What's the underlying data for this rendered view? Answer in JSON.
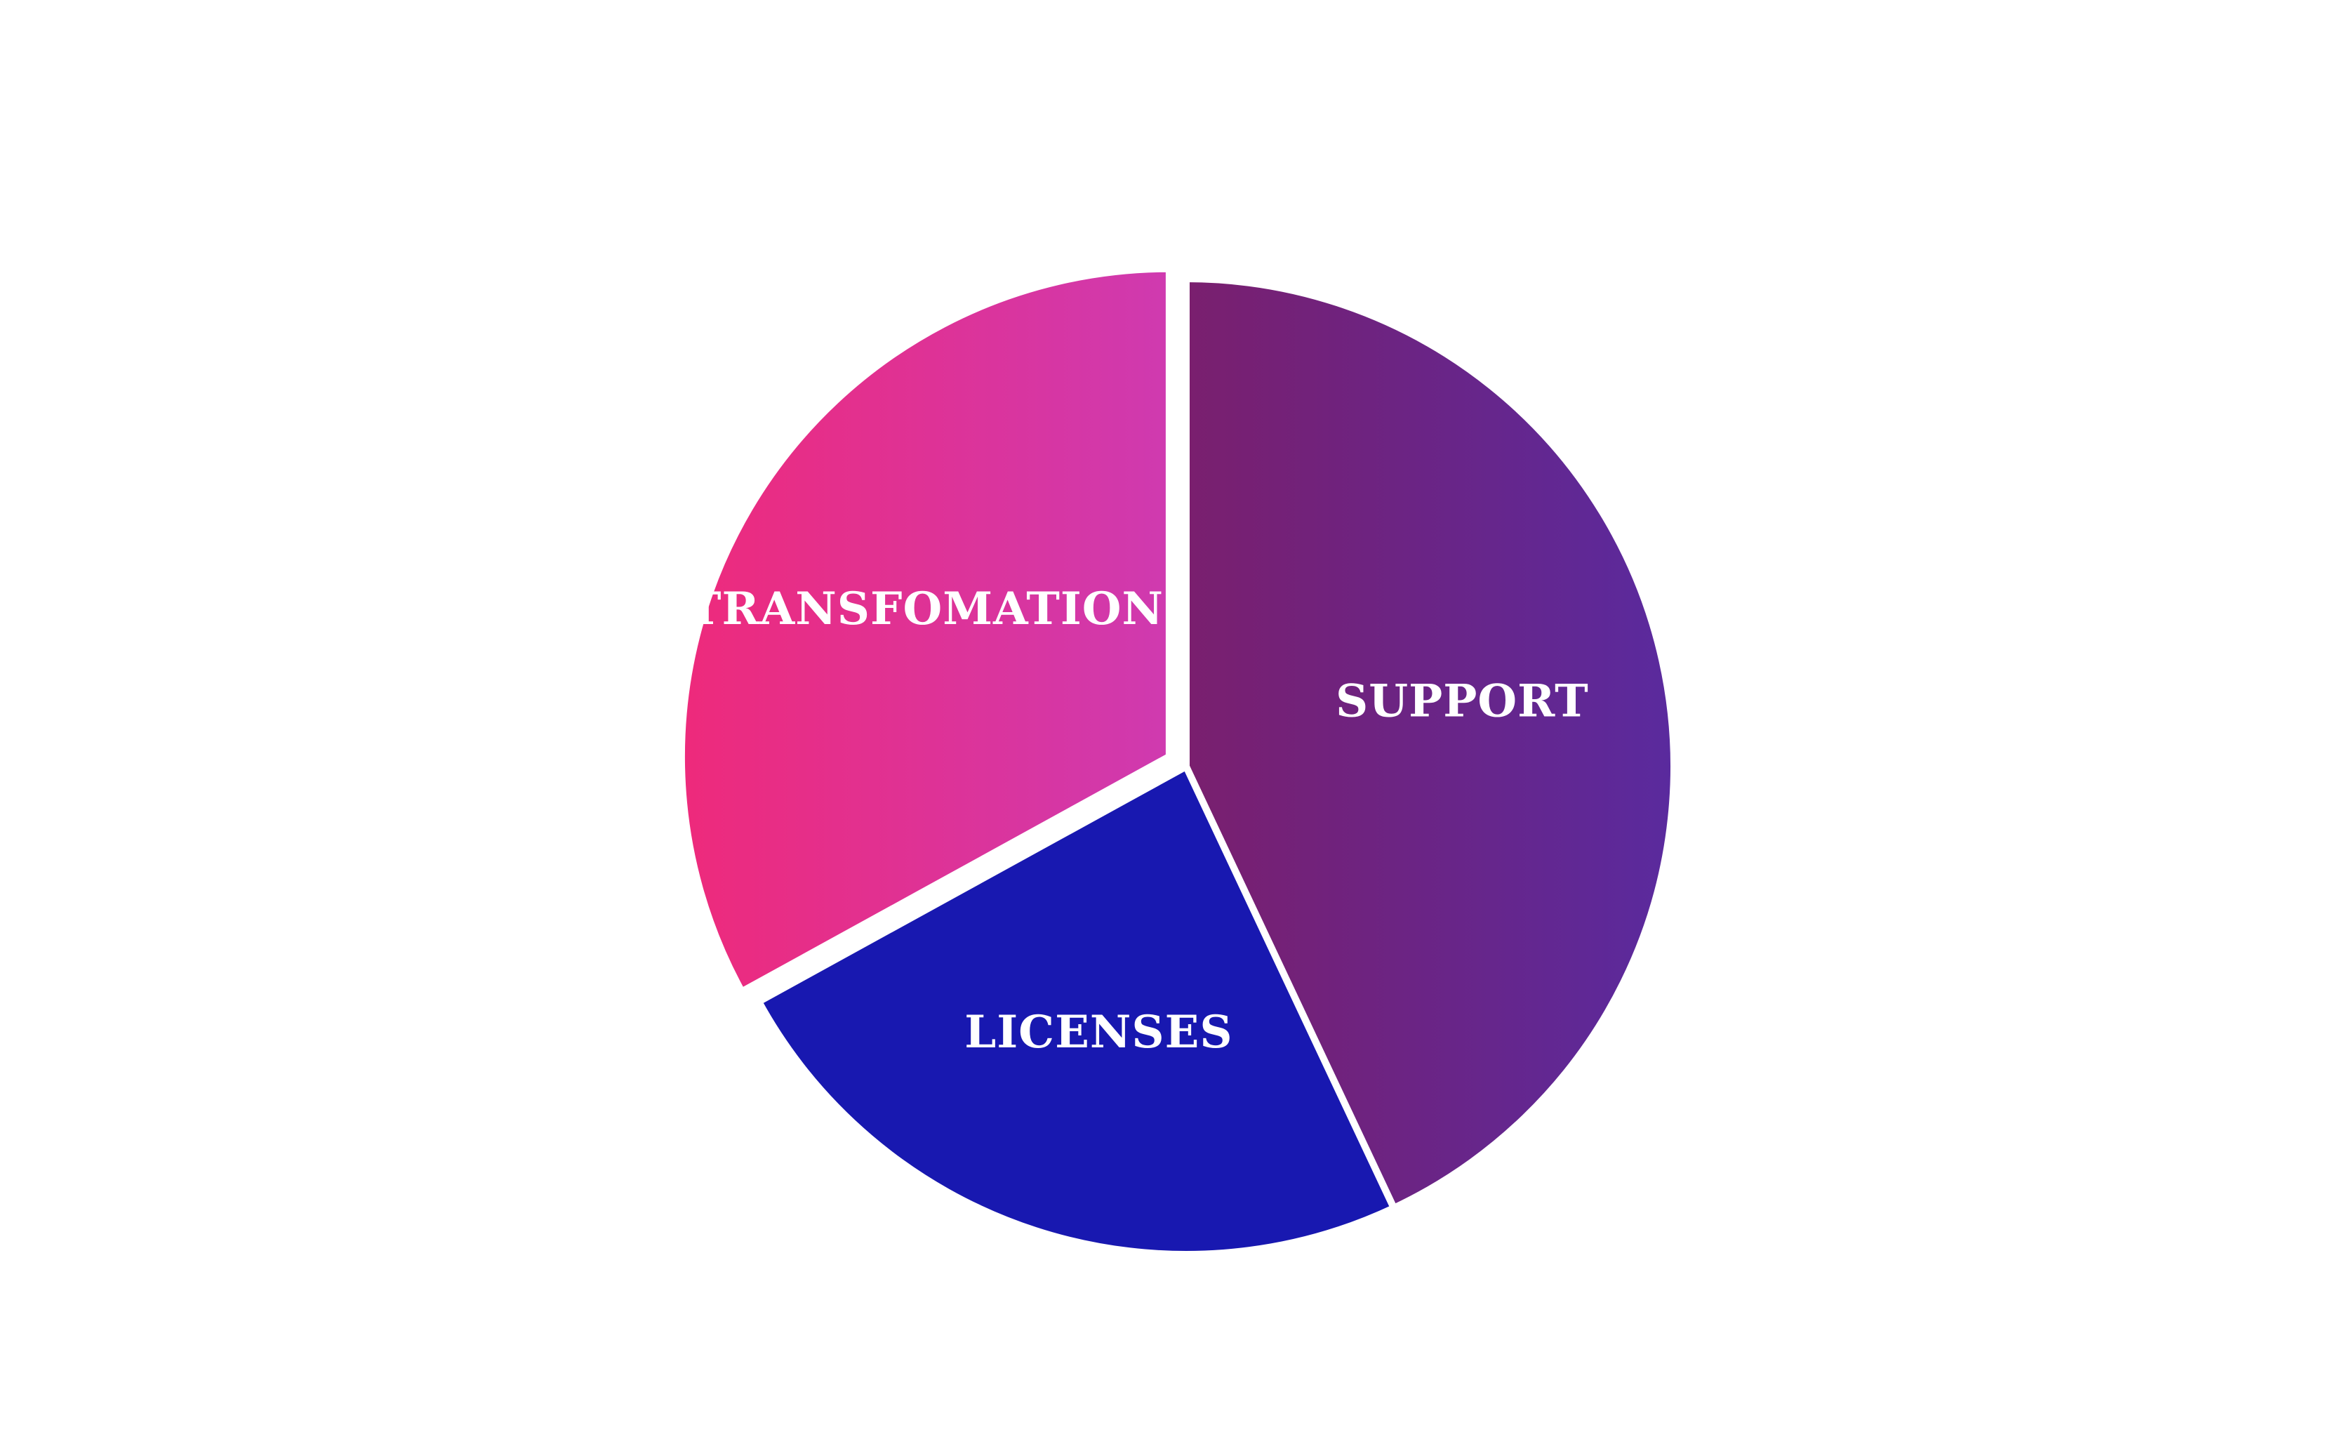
{
  "chart_data": {
    "type": "pie",
    "title": "",
    "slices": [
      {
        "label": "SUPPORT",
        "value": 43,
        "color_start": "#7A1F6E",
        "color_end": "#5A2A9E"
      },
      {
        "label": "LICENSES",
        "value": 24,
        "color_start": "#1818B0",
        "color_end": "#1818B0"
      },
      {
        "label": "TRANSFOMATION",
        "value": 33,
        "color_start": "#EE2A7B",
        "color_end": "#CF3AB0"
      }
    ],
    "legend": "none",
    "labels_inside_slices": true,
    "exploded_slice": "TRANSFOMATION"
  }
}
